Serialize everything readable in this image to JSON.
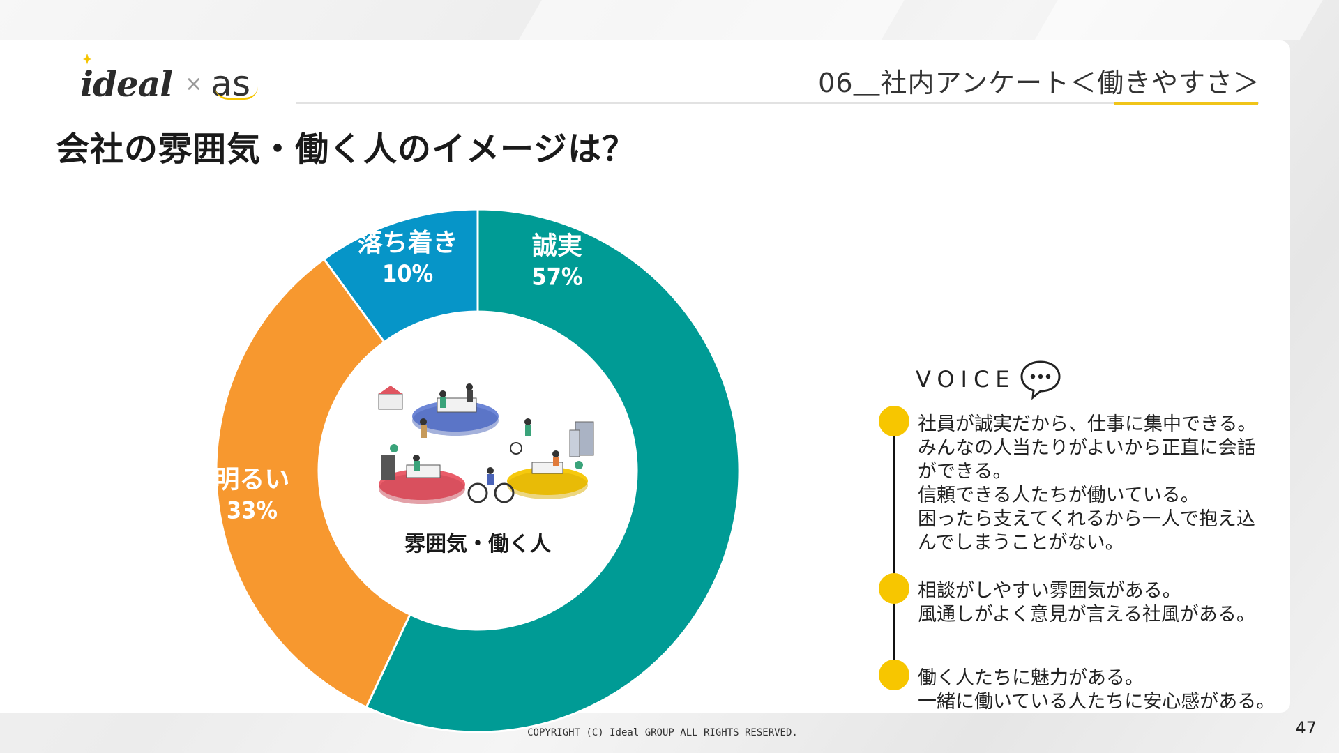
{
  "header": {
    "section_title": "06＿社内アンケート＜働きやすさ＞",
    "logo_ideal": "ideal",
    "logo_times": "×",
    "logo_as": "as"
  },
  "page_title": "会社の雰囲気・働く人のイメージは？",
  "chart_data": {
    "type": "pie",
    "donut": true,
    "title": "",
    "center_label": "雰囲気・働く人",
    "categories": [
      "誠実",
      "明るい",
      "落ち着き"
    ],
    "values": [
      57,
      33,
      10
    ],
    "value_labels": [
      "57%",
      "33%",
      "10%"
    ],
    "colors": [
      "#009b95",
      "#f7982f",
      "#0695c8"
    ],
    "legend": "none"
  },
  "voice": {
    "label": "VOICE",
    "items": [
      "社員が誠実だから、仕事に集中できる。\nみんなの人当たりがよいから正直に会話\nができる。\n信頼できる人たちが働いている。\n困ったら支えてくれるから一人で抱え込\nんでしまうことがない。",
      "相談がしやすい雰囲気がある。\n風通しがよく意見が言える社風がある。",
      "働く人たちに魅力がある。\n一緒に働いている人たちに安心感がある。"
    ]
  },
  "footer": {
    "copyright": "COPYRIGHT (C) Ideal GROUP ALL RIGHTS RESERVED.",
    "page_number": "47"
  },
  "colors": {
    "accent": "#f0c419",
    "dot": "#f7c600"
  },
  "icons": [
    "speech-bubble-icon",
    "office-illustration"
  ]
}
